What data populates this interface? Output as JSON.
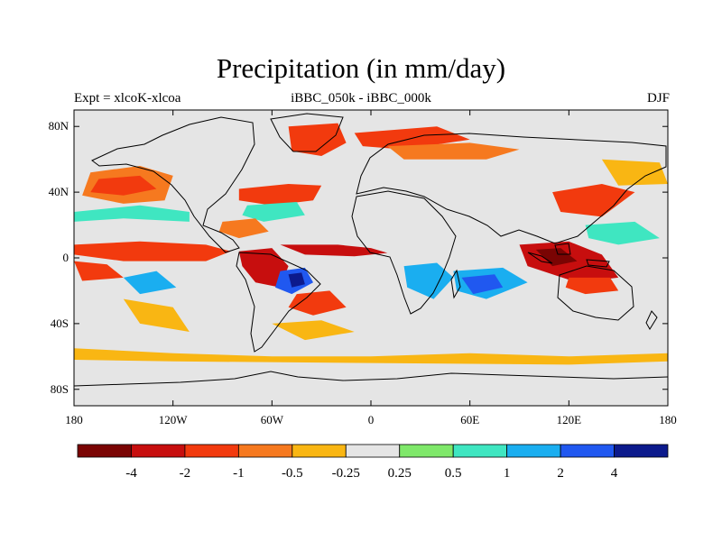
{
  "title": "Precipitation (in mm/day)",
  "subtitle_left": "Expt = xlcoK-xlcoa",
  "subtitle_center": "iBBC_050k - iBBC_000k",
  "subtitle_right": "DJF",
  "map": {
    "projection": "cylindrical equidistant",
    "lon_range": [
      -180,
      180
    ],
    "lat_range": [
      -90,
      90
    ],
    "background_color": "#e5e5e5",
    "lat_ticks": [
      {
        "value": 80,
        "label": "80N"
      },
      {
        "value": 40,
        "label": "40N"
      },
      {
        "value": 0,
        "label": "0"
      },
      {
        "value": -40,
        "label": "40S"
      },
      {
        "value": -80,
        "label": "80S"
      }
    ],
    "lon_ticks": [
      {
        "value": -180,
        "label": "180"
      },
      {
        "value": -120,
        "label": "120W"
      },
      {
        "value": -60,
        "label": "60W"
      },
      {
        "value": 0,
        "label": "0"
      },
      {
        "value": 60,
        "label": "60E"
      },
      {
        "value": 120,
        "label": "120E"
      },
      {
        "value": 180,
        "label": "180"
      }
    ]
  },
  "colorbar": {
    "colors": [
      "#7a0403",
      "#c70e0e",
      "#f23a0e",
      "#f6791f",
      "#f9b613",
      "#e5e5e5",
      "#7fe86a",
      "#3fe6c1",
      "#1aaef0",
      "#2058f0",
      "#0c1a8c"
    ],
    "labels": [
      "-4",
      "-2",
      "-1",
      "-0.5",
      "-0.25",
      "0.25",
      "0.5",
      "1",
      "2",
      "4"
    ]
  },
  "regions": [
    {
      "name": "north-pacific-dry",
      "color": "#f6791f",
      "pts": [
        [
          -170,
          52
        ],
        [
          -140,
          56
        ],
        [
          -120,
          50
        ],
        [
          -125,
          35
        ],
        [
          -150,
          33
        ],
        [
          -175,
          38
        ]
      ]
    },
    {
      "name": "north-pacific-core",
      "color": "#f23a0e",
      "pts": [
        [
          -165,
          48
        ],
        [
          -140,
          50
        ],
        [
          -130,
          42
        ],
        [
          -150,
          38
        ],
        [
          -170,
          40
        ]
      ]
    },
    {
      "name": "pacific-wet-band",
      "color": "#3fe6c1",
      "pts": [
        [
          -180,
          28
        ],
        [
          -140,
          32
        ],
        [
          -110,
          28
        ],
        [
          -110,
          22
        ],
        [
          -150,
          24
        ],
        [
          -180,
          22
        ]
      ]
    },
    {
      "name": "equatorial-pacific-dry",
      "color": "#f23a0e",
      "pts": [
        [
          -180,
          8
        ],
        [
          -140,
          10
        ],
        [
          -100,
          8
        ],
        [
          -85,
          4
        ],
        [
          -100,
          -2
        ],
        [
          -150,
          -2
        ],
        [
          -180,
          2
        ]
      ]
    },
    {
      "name": "south-pacific-dry",
      "color": "#f23a0e",
      "pts": [
        [
          -180,
          -2
        ],
        [
          -160,
          -4
        ],
        [
          -150,
          -12
        ],
        [
          -175,
          -14
        ]
      ]
    },
    {
      "name": "south-pacific-wet",
      "color": "#1aaef0",
      "pts": [
        [
          -150,
          -12
        ],
        [
          -130,
          -8
        ],
        [
          -118,
          -18
        ],
        [
          -140,
          -22
        ]
      ]
    },
    {
      "name": "south-pacific-orange",
      "color": "#f9b613",
      "pts": [
        [
          -150,
          -25
        ],
        [
          -120,
          -30
        ],
        [
          -110,
          -45
        ],
        [
          -140,
          -40
        ]
      ]
    },
    {
      "name": "amazon-dry",
      "color": "#c70e0e",
      "pts": [
        [
          -80,
          4
        ],
        [
          -60,
          6
        ],
        [
          -50,
          -5
        ],
        [
          -55,
          -18
        ],
        [
          -70,
          -15
        ],
        [
          -78,
          -5
        ]
      ]
    },
    {
      "name": "atlantic-itcz-dry",
      "color": "#c70e0e",
      "pts": [
        [
          -55,
          8
        ],
        [
          -20,
          8
        ],
        [
          0,
          6
        ],
        [
          10,
          3
        ],
        [
          -10,
          1
        ],
        [
          -40,
          2
        ]
      ]
    },
    {
      "name": "brazil-wet-core",
      "color": "#2058f0",
      "pts": [
        [
          -55,
          -8
        ],
        [
          -40,
          -6
        ],
        [
          -35,
          -15
        ],
        [
          -48,
          -22
        ],
        [
          -58,
          -18
        ]
      ]
    },
    {
      "name": "brazil-wet-center",
      "color": "#0c1a8c",
      "pts": [
        [
          -50,
          -10
        ],
        [
          -42,
          -9
        ],
        [
          -40,
          -16
        ],
        [
          -48,
          -18
        ]
      ]
    },
    {
      "name": "south-atlantic-dry",
      "color": "#f23a0e",
      "pts": [
        [
          -45,
          -22
        ],
        [
          -25,
          -20
        ],
        [
          -15,
          -30
        ],
        [
          -35,
          -35
        ],
        [
          -50,
          -30
        ]
      ]
    },
    {
      "name": "south-atlantic-orange",
      "color": "#f9b613",
      "pts": [
        [
          -60,
          -40
        ],
        [
          -30,
          -38
        ],
        [
          -10,
          -45
        ],
        [
          -40,
          -50
        ]
      ]
    },
    {
      "name": "north-atlantic-dry",
      "color": "#f23a0e",
      "pts": [
        [
          -80,
          42
        ],
        [
          -50,
          45
        ],
        [
          -30,
          44
        ],
        [
          -35,
          35
        ],
        [
          -60,
          32
        ],
        [
          -80,
          35
        ]
      ]
    },
    {
      "name": "north-atlantic-wet",
      "color": "#3fe6c1",
      "pts": [
        [
          -75,
          32
        ],
        [
          -45,
          34
        ],
        [
          -40,
          26
        ],
        [
          -65,
          22
        ],
        [
          -78,
          26
        ]
      ]
    },
    {
      "name": "caribbean-dry",
      "color": "#f6791f",
      "pts": [
        [
          -90,
          22
        ],
        [
          -70,
          24
        ],
        [
          -62,
          16
        ],
        [
          -80,
          12
        ],
        [
          -92,
          16
        ]
      ]
    },
    {
      "name": "greenland-dry",
      "color": "#f23a0e",
      "pts": [
        [
          -50,
          80
        ],
        [
          -20,
          82
        ],
        [
          -15,
          70
        ],
        [
          -30,
          62
        ],
        [
          -48,
          65
        ]
      ]
    },
    {
      "name": "arctic-dry",
      "color": "#f23a0e",
      "pts": [
        [
          -10,
          76
        ],
        [
          40,
          80
        ],
        [
          60,
          72
        ],
        [
          20,
          66
        ],
        [
          -5,
          68
        ]
      ]
    },
    {
      "name": "eurasia-dry",
      "color": "#f6791f",
      "pts": [
        [
          10,
          68
        ],
        [
          60,
          70
        ],
        [
          90,
          66
        ],
        [
          70,
          60
        ],
        [
          20,
          60
        ]
      ]
    },
    {
      "name": "africa-wet",
      "color": "#1aaef0",
      "pts": [
        [
          20,
          -5
        ],
        [
          40,
          -3
        ],
        [
          50,
          -12
        ],
        [
          38,
          -25
        ],
        [
          22,
          -18
        ]
      ]
    },
    {
      "name": "indian-ocean-wet",
      "color": "#1aaef0",
      "pts": [
        [
          50,
          -8
        ],
        [
          80,
          -6
        ],
        [
          95,
          -15
        ],
        [
          70,
          -25
        ],
        [
          52,
          -20
        ]
      ]
    },
    {
      "name": "indian-ocean-core",
      "color": "#2058f0",
      "pts": [
        [
          55,
          -12
        ],
        [
          75,
          -10
        ],
        [
          80,
          -18
        ],
        [
          62,
          -22
        ]
      ]
    },
    {
      "name": "indonesia-dry",
      "color": "#c70e0e",
      "pts": [
        [
          90,
          8
        ],
        [
          120,
          10
        ],
        [
          140,
          2
        ],
        [
          150,
          -12
        ],
        [
          125,
          -15
        ],
        [
          95,
          -5
        ]
      ]
    },
    {
      "name": "indonesia-core",
      "color": "#7a0403",
      "pts": [
        [
          100,
          5
        ],
        [
          115,
          6
        ],
        [
          125,
          -2
        ],
        [
          110,
          -5
        ]
      ]
    },
    {
      "name": "west-pacific-wet",
      "color": "#3fe6c1",
      "pts": [
        [
          130,
          20
        ],
        [
          160,
          22
        ],
        [
          175,
          12
        ],
        [
          150,
          8
        ],
        [
          132,
          12
        ]
      ]
    },
    {
      "name": "east-asia-dry",
      "color": "#f23a0e",
      "pts": [
        [
          110,
          40
        ],
        [
          140,
          45
        ],
        [
          160,
          40
        ],
        [
          140,
          25
        ],
        [
          115,
          28
        ]
      ]
    },
    {
      "name": "north-west-pacific-orange",
      "color": "#f9b613",
      "pts": [
        [
          140,
          60
        ],
        [
          175,
          58
        ],
        [
          180,
          45
        ],
        [
          150,
          44
        ]
      ]
    },
    {
      "name": "australia-dry",
      "color": "#f23a0e",
      "pts": [
        [
          120,
          -12
        ],
        [
          145,
          -12
        ],
        [
          150,
          -20
        ],
        [
          130,
          -22
        ],
        [
          118,
          -18
        ]
      ]
    },
    {
      "name": "southern-ocean-orange",
      "color": "#f9b613",
      "pts": [
        [
          -180,
          -55
        ],
        [
          -120,
          -58
        ],
        [
          -60,
          -60
        ],
        [
          0,
          -60
        ],
        [
          60,
          -58
        ],
        [
          120,
          -60
        ],
        [
          180,
          -58
        ],
        [
          180,
          -63
        ],
        [
          120,
          -65
        ],
        [
          0,
          -64
        ],
        [
          -120,
          -63
        ],
        [
          -180,
          -62
        ]
      ]
    }
  ]
}
